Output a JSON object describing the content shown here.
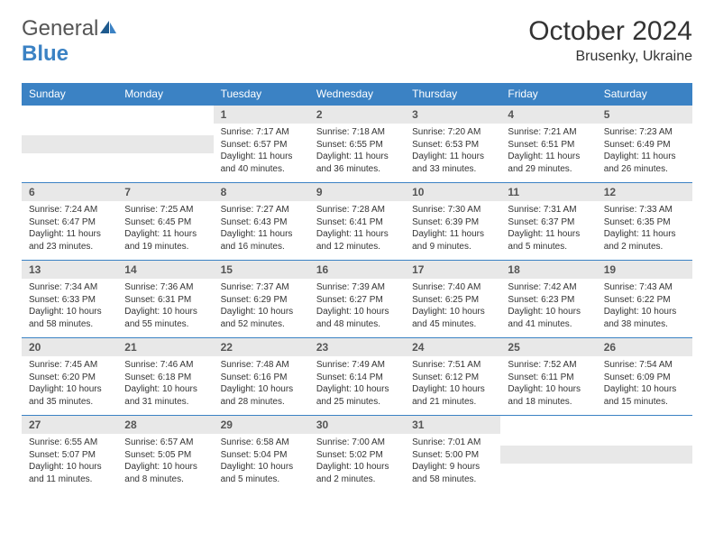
{
  "brand": {
    "general": "General",
    "blue": "Blue"
  },
  "title": "October 2024",
  "location": "Brusenky, Ukraine",
  "colors": {
    "header_bg": "#3b82c4",
    "header_text": "#ffffff",
    "day_number_bg": "#e8e8e8",
    "cell_border": "#3b82c4",
    "text": "#333333"
  },
  "day_headers": [
    "Sunday",
    "Monday",
    "Tuesday",
    "Wednesday",
    "Thursday",
    "Friday",
    "Saturday"
  ],
  "weeks": [
    [
      null,
      null,
      {
        "n": "1",
        "sr": "7:17 AM",
        "ss": "6:57 PM",
        "dl": "11 hours and 40 minutes."
      },
      {
        "n": "2",
        "sr": "7:18 AM",
        "ss": "6:55 PM",
        "dl": "11 hours and 36 minutes."
      },
      {
        "n": "3",
        "sr": "7:20 AM",
        "ss": "6:53 PM",
        "dl": "11 hours and 33 minutes."
      },
      {
        "n": "4",
        "sr": "7:21 AM",
        "ss": "6:51 PM",
        "dl": "11 hours and 29 minutes."
      },
      {
        "n": "5",
        "sr": "7:23 AM",
        "ss": "6:49 PM",
        "dl": "11 hours and 26 minutes."
      }
    ],
    [
      {
        "n": "6",
        "sr": "7:24 AM",
        "ss": "6:47 PM",
        "dl": "11 hours and 23 minutes."
      },
      {
        "n": "7",
        "sr": "7:25 AM",
        "ss": "6:45 PM",
        "dl": "11 hours and 19 minutes."
      },
      {
        "n": "8",
        "sr": "7:27 AM",
        "ss": "6:43 PM",
        "dl": "11 hours and 16 minutes."
      },
      {
        "n": "9",
        "sr": "7:28 AM",
        "ss": "6:41 PM",
        "dl": "11 hours and 12 minutes."
      },
      {
        "n": "10",
        "sr": "7:30 AM",
        "ss": "6:39 PM",
        "dl": "11 hours and 9 minutes."
      },
      {
        "n": "11",
        "sr": "7:31 AM",
        "ss": "6:37 PM",
        "dl": "11 hours and 5 minutes."
      },
      {
        "n": "12",
        "sr": "7:33 AM",
        "ss": "6:35 PM",
        "dl": "11 hours and 2 minutes."
      }
    ],
    [
      {
        "n": "13",
        "sr": "7:34 AM",
        "ss": "6:33 PM",
        "dl": "10 hours and 58 minutes."
      },
      {
        "n": "14",
        "sr": "7:36 AM",
        "ss": "6:31 PM",
        "dl": "10 hours and 55 minutes."
      },
      {
        "n": "15",
        "sr": "7:37 AM",
        "ss": "6:29 PM",
        "dl": "10 hours and 52 minutes."
      },
      {
        "n": "16",
        "sr": "7:39 AM",
        "ss": "6:27 PM",
        "dl": "10 hours and 48 minutes."
      },
      {
        "n": "17",
        "sr": "7:40 AM",
        "ss": "6:25 PM",
        "dl": "10 hours and 45 minutes."
      },
      {
        "n": "18",
        "sr": "7:42 AM",
        "ss": "6:23 PM",
        "dl": "10 hours and 41 minutes."
      },
      {
        "n": "19",
        "sr": "7:43 AM",
        "ss": "6:22 PM",
        "dl": "10 hours and 38 minutes."
      }
    ],
    [
      {
        "n": "20",
        "sr": "7:45 AM",
        "ss": "6:20 PM",
        "dl": "10 hours and 35 minutes."
      },
      {
        "n": "21",
        "sr": "7:46 AM",
        "ss": "6:18 PM",
        "dl": "10 hours and 31 minutes."
      },
      {
        "n": "22",
        "sr": "7:48 AM",
        "ss": "6:16 PM",
        "dl": "10 hours and 28 minutes."
      },
      {
        "n": "23",
        "sr": "7:49 AM",
        "ss": "6:14 PM",
        "dl": "10 hours and 25 minutes."
      },
      {
        "n": "24",
        "sr": "7:51 AM",
        "ss": "6:12 PM",
        "dl": "10 hours and 21 minutes."
      },
      {
        "n": "25",
        "sr": "7:52 AM",
        "ss": "6:11 PM",
        "dl": "10 hours and 18 minutes."
      },
      {
        "n": "26",
        "sr": "7:54 AM",
        "ss": "6:09 PM",
        "dl": "10 hours and 15 minutes."
      }
    ],
    [
      {
        "n": "27",
        "sr": "6:55 AM",
        "ss": "5:07 PM",
        "dl": "10 hours and 11 minutes."
      },
      {
        "n": "28",
        "sr": "6:57 AM",
        "ss": "5:05 PM",
        "dl": "10 hours and 8 minutes."
      },
      {
        "n": "29",
        "sr": "6:58 AM",
        "ss": "5:04 PM",
        "dl": "10 hours and 5 minutes."
      },
      {
        "n": "30",
        "sr": "7:00 AM",
        "ss": "5:02 PM",
        "dl": "10 hours and 2 minutes."
      },
      {
        "n": "31",
        "sr": "7:01 AM",
        "ss": "5:00 PM",
        "dl": "9 hours and 58 minutes."
      },
      null,
      null
    ]
  ]
}
